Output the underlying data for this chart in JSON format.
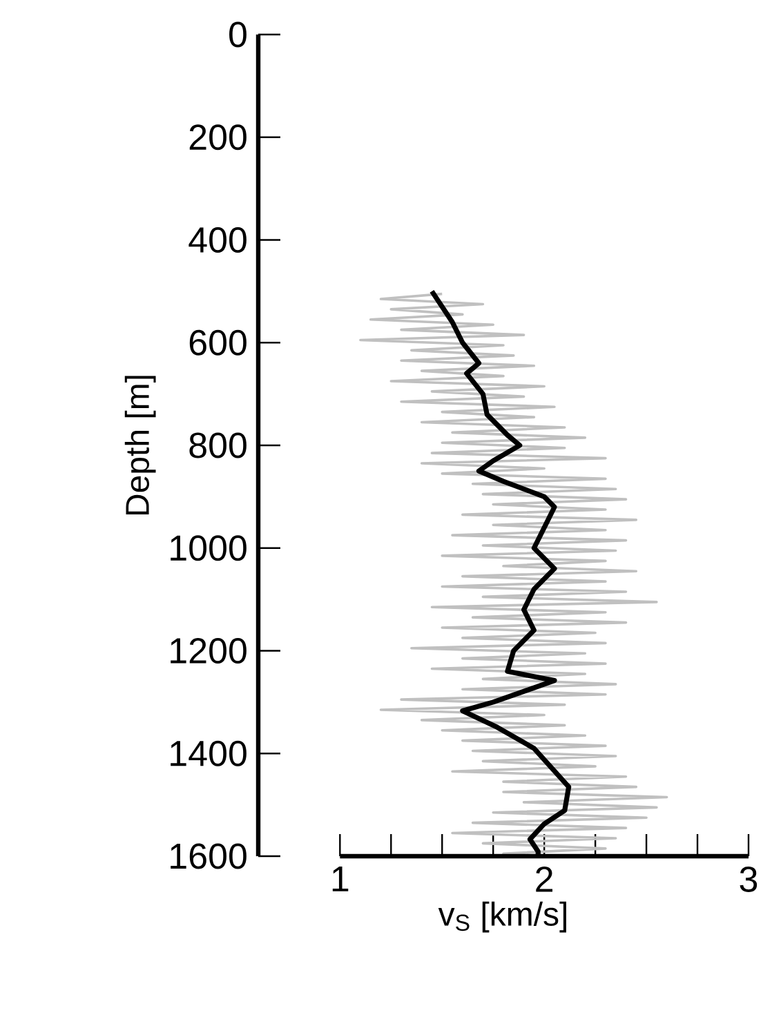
{
  "chart_data": {
    "type": "line",
    "xlabel": "v$_{S}$ [km/s]",
    "ylabel": "Depth [m]",
    "xlim": [
      0.6,
      3
    ],
    "ylim": [
      1600,
      0
    ],
    "xticks": [
      1,
      {
        "value": 1.25,
        "label": null
      },
      {
        "value": 1.5,
        "label": null
      },
      {
        "value": 1.75,
        "label": null
      },
      2,
      {
        "value": 2.25,
        "label": null
      },
      {
        "value": 2.5,
        "label": null
      },
      {
        "value": 2.75,
        "label": null
      },
      3
    ],
    "yticks": [
      0,
      200,
      400,
      600,
      800,
      1000,
      1200,
      1400,
      1600
    ],
    "series": [
      {
        "color": "#c0c0c0",
        "x": [
          1.5,
          1.2,
          1.7,
          1.25,
          1.6,
          1.15,
          1.75,
          1.3,
          1.9,
          1.1,
          1.8,
          1.35,
          1.85,
          1.3,
          1.95,
          1.4,
          1.8,
          1.25,
          2.0,
          1.45,
          1.9,
          1.3,
          2.05,
          1.5,
          1.95,
          1.4,
          2.1,
          1.55,
          2.2,
          1.5,
          2.1,
          1.45,
          2.3,
          1.4,
          2.0,
          1.5,
          2.3,
          1.65,
          2.35,
          1.7,
          2.4,
          1.75,
          2.3,
          1.6,
          2.45,
          1.75,
          2.3,
          1.55,
          2.4,
          1.7,
          2.35,
          1.5,
          2.3,
          1.8,
          2.45,
          1.6,
          2.3,
          1.5,
          2.4,
          1.7,
          2.55,
          1.45,
          2.3,
          1.65,
          2.4,
          1.5,
          2.25,
          1.6,
          2.3,
          1.35,
          2.2,
          1.6,
          2.3,
          1.45,
          2.2,
          1.7,
          2.35,
          1.6,
          2.3,
          1.3,
          2.1,
          1.2,
          2.0,
          1.4,
          2.1,
          1.5,
          2.2,
          1.6,
          2.3,
          1.65,
          2.35,
          1.7,
          2.25,
          1.55,
          2.4,
          1.8,
          2.45,
          1.8,
          2.6,
          1.9,
          2.55,
          1.75,
          2.5,
          1.65,
          2.4,
          1.55,
          2.35,
          1.7,
          2.3,
          1.8,
          2.0
        ],
        "values": [
          505,
          515,
          525,
          535,
          545,
          555,
          565,
          575,
          585,
          595,
          605,
          615,
          625,
          635,
          645,
          655,
          665,
          675,
          685,
          695,
          705,
          715,
          725,
          735,
          745,
          755,
          765,
          775,
          785,
          795,
          805,
          815,
          825,
          835,
          845,
          855,
          865,
          875,
          885,
          895,
          905,
          915,
          925,
          935,
          945,
          955,
          965,
          975,
          985,
          995,
          1005,
          1015,
          1025,
          1035,
          1045,
          1055,
          1065,
          1075,
          1085,
          1095,
          1105,
          1115,
          1125,
          1135,
          1145,
          1155,
          1165,
          1175,
          1185,
          1195,
          1205,
          1215,
          1225,
          1235,
          1245,
          1255,
          1265,
          1275,
          1285,
          1295,
          1305,
          1315,
          1325,
          1335,
          1345,
          1355,
          1365,
          1375,
          1385,
          1395,
          1405,
          1415,
          1425,
          1435,
          1445,
          1455,
          1465,
          1475,
          1485,
          1495,
          1505,
          1515,
          1525,
          1535,
          1545,
          1555,
          1565,
          1575,
          1585,
          1595,
          1600
        ]
      },
      {
        "color": "#000000",
        "x": [
          1.45,
          1.55,
          1.6,
          1.68,
          1.62,
          1.7,
          1.72,
          1.82,
          1.88,
          1.75,
          1.68,
          1.8,
          2.0,
          2.05,
          2.0,
          1.95,
          2.05,
          1.95,
          1.9,
          1.95,
          1.85,
          1.82,
          2.05,
          1.75,
          1.6,
          1.77,
          1.95,
          2.12,
          2.1,
          2.0,
          1.93,
          1.97,
          1.97
        ],
        "values": [
          500,
          560,
          600,
          640,
          660,
          700,
          740,
          780,
          800,
          830,
          850,
          870,
          900,
          920,
          960,
          1000,
          1040,
          1080,
          1120,
          1160,
          1200,
          1240,
          1258,
          1300,
          1317,
          1349,
          1390,
          1465,
          1511,
          1537,
          1567,
          1591,
          1600
        ]
      }
    ]
  }
}
